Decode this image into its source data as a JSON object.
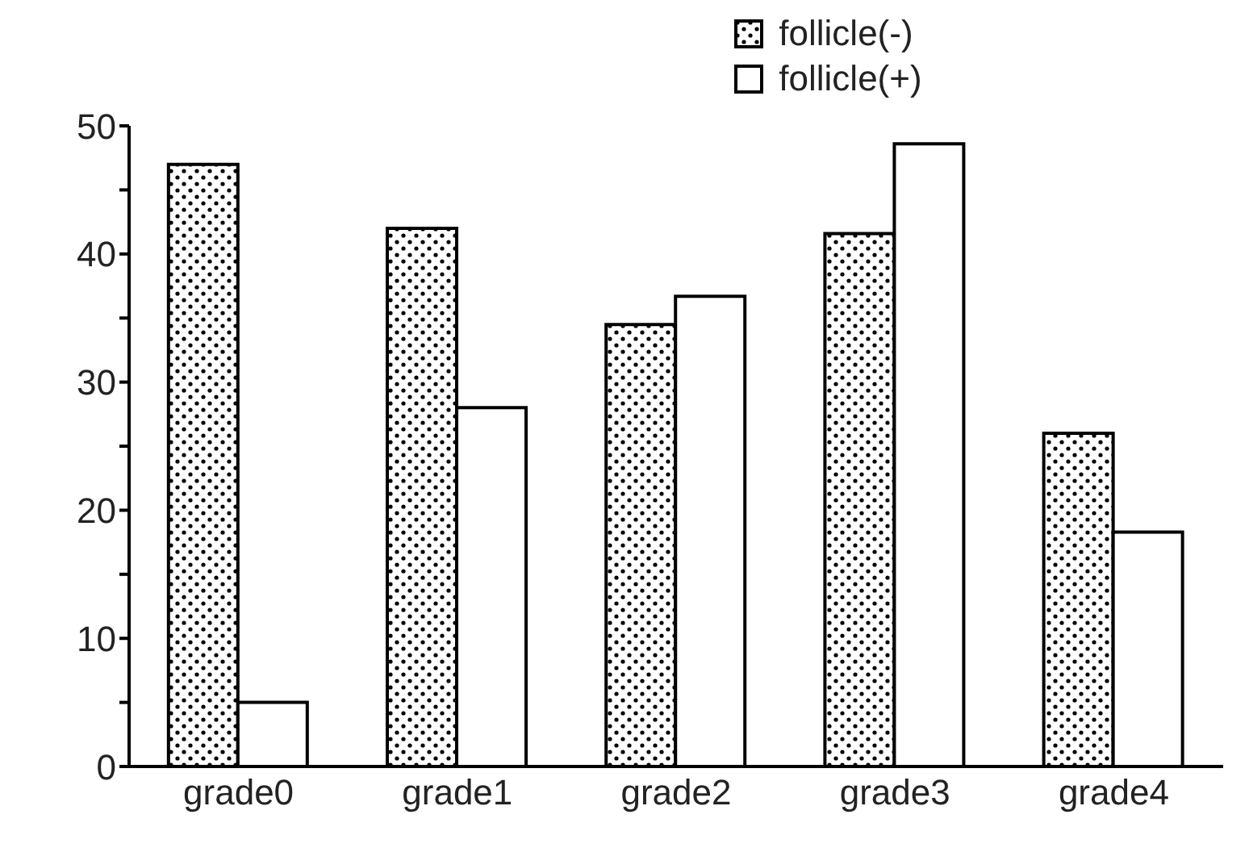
{
  "chart_data": {
    "type": "bar",
    "categories": [
      "grade0",
      "grade1",
      "grade2",
      "grade3",
      "grade4"
    ],
    "series": [
      {
        "name": "follicle(-)",
        "color": "#000000",
        "values": [
          47,
          42,
          34.5,
          41.6,
          26
        ]
      },
      {
        "name": "follicle(+)",
        "color": "#ffffff",
        "values": [
          5,
          28,
          36.7,
          48.6,
          18.3
        ]
      }
    ],
    "ylim": [
      0,
      50
    ],
    "yticks": [
      0,
      {
        "value": 5,
        "label": null
      },
      10,
      {
        "value": 15,
        "label": null
      },
      20,
      {
        "value": 25,
        "label": null
      },
      30,
      {
        "value": 35,
        "label": null
      },
      40,
      {
        "value": 45,
        "label": null
      },
      50
    ],
    "legend": "top",
    "grid": false
  }
}
